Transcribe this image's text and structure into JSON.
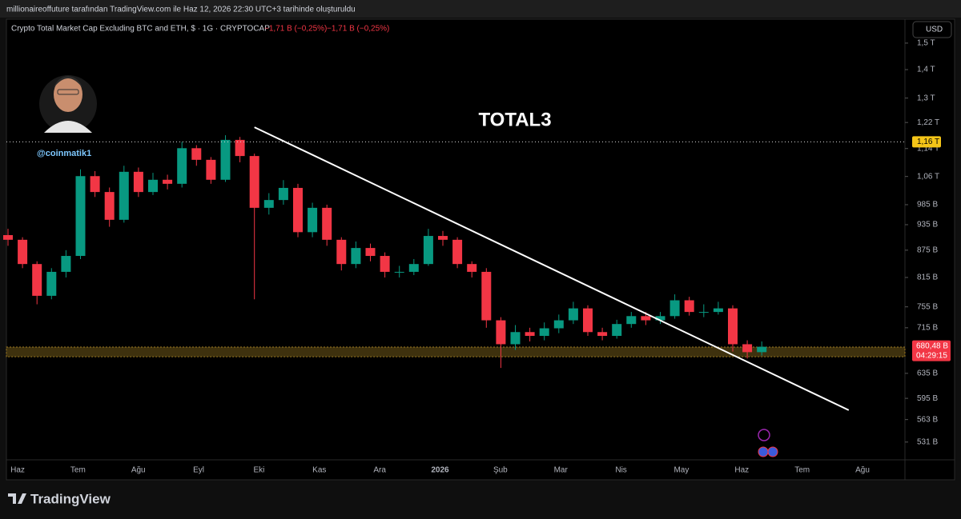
{
  "header": {
    "caption": "millionaireoffuture tarafından TradingView.com ile Haz 12, 2026 22:30 UTC+3 tarihinde oluşturuldu"
  },
  "chart_data": {
    "type": "candlestick",
    "title": "TOTAL3",
    "symbol": "Crypto Total Market Cap Excluding BTC and ETH, $ · 1G · CRYPTOCAP",
    "change_labels": [
      "−1,71 B (−0,25%)",
      "−1,71 B (−0,25%)"
    ],
    "currency": "USD",
    "author": "@coinmatik1",
    "open": [
      910,
      899,
      844,
      777,
      827,
      862,
      1061,
      1018,
      947,
      1073,
      1018,
      1051,
      1040,
      1141,
      1107,
      1051,
      1166,
      1118,
      977,
      997,
      1029,
      917,
      977,
      899,
      844,
      880,
      862,
      827,
      827,
      844,
      908,
      899,
      844,
      827,
      729,
      685,
      707,
      700,
      714,
      729,
      752,
      707,
      700,
      722,
      737,
      729,
      737,
      768,
      745,
      745,
      752,
      685,
      671
    ],
    "high": [
      925,
      905,
      850,
      835,
      875,
      1080,
      1075,
      1030,
      1090,
      1085,
      1070,
      1065,
      1160,
      1150,
      1115,
      1180,
      1175,
      1125,
      1015,
      1050,
      1040,
      990,
      985,
      905,
      895,
      890,
      870,
      840,
      855,
      925,
      920,
      905,
      850,
      835,
      735,
      720,
      715,
      725,
      740,
      765,
      758,
      715,
      730,
      745,
      745,
      745,
      780,
      775,
      760,
      765,
      758,
      692,
      690
    ],
    "low": [
      885,
      835,
      760,
      770,
      815,
      855,
      1005,
      930,
      940,
      1005,
      1010,
      1025,
      1030,
      1090,
      1040,
      1045,
      1100,
      770,
      960,
      985,
      905,
      905,
      885,
      830,
      835,
      850,
      815,
      815,
      820,
      840,
      885,
      835,
      815,
      715,
      644,
      675,
      690,
      692,
      705,
      722,
      700,
      692,
      695,
      715,
      720,
      722,
      732,
      738,
      735,
      740,
      672,
      660,
      665
    ],
    "close": [
      899,
      844,
      777,
      827,
      862,
      1061,
      1018,
      947,
      1073,
      1018,
      1051,
      1040,
      1141,
      1107,
      1051,
      1166,
      1118,
      977,
      997,
      1029,
      917,
      977,
      899,
      844,
      880,
      862,
      827,
      827,
      844,
      908,
      899,
      844,
      827,
      729,
      685,
      707,
      700,
      714,
      729,
      752,
      707,
      700,
      722,
      737,
      729,
      737,
      768,
      745,
      745,
      752,
      685,
      671,
      680.48
    ],
    "time_labels": [
      "Haz",
      "Tem",
      "Ağu",
      "Eyl",
      "Eki",
      "Kas",
      "Ara",
      "2026",
      "Şub",
      "Mar",
      "Nis",
      "May",
      "Haz",
      "Tem",
      "Ağu"
    ],
    "ylim": [
      507,
      1593
    ],
    "log_scale": true,
    "yticks": [
      {
        "value": 1500,
        "label": "1,5 T"
      },
      {
        "value": 1400,
        "label": "1,4 T"
      },
      {
        "value": 1300,
        "label": "1,3 T"
      },
      {
        "value": 1220,
        "label": "1,22 T"
      },
      {
        "value": 1140,
        "label": "1,14 T"
      },
      {
        "value": 1060,
        "label": "1,06 T"
      },
      {
        "value": 985,
        "label": "985 B"
      },
      {
        "value": 935,
        "label": "935 B"
      },
      {
        "value": 875,
        "label": "875 B"
      },
      {
        "value": 815,
        "label": "815 B"
      },
      {
        "value": 755,
        "label": "755 B"
      },
      {
        "value": 715,
        "label": "715 B"
      },
      {
        "value": 635,
        "label": "635 B"
      },
      {
        "value": 595,
        "label": "595 B"
      },
      {
        "value": 563,
        "label": "563 B"
      },
      {
        "value": 531,
        "label": "531 B"
      }
    ],
    "colors": {
      "up": "#089981",
      "down": "#f23645"
    },
    "last_price": {
      "value": 680.48,
      "label": "680,48 B"
    },
    "countdown": "04:29:15",
    "price_line": {
      "value": 1160,
      "label": "1,16 T"
    },
    "support_zone": [
      663,
      680
    ],
    "trendline": {
      "x": [
        17,
        58
      ],
      "values": [
        1205,
        577
      ]
    }
  },
  "footer": {
    "brand": "TradingView"
  }
}
